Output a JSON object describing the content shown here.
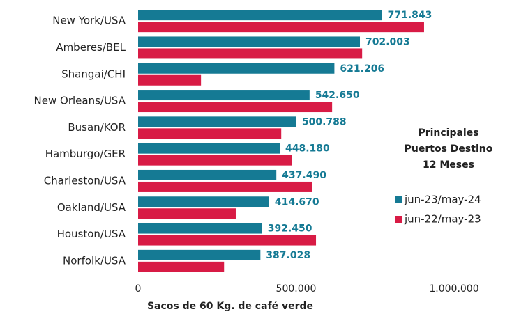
{
  "chart_data": {
    "type": "hbar",
    "categories": [
      "New York/USA",
      "Amberes/BEL",
      "Shangai/CHI",
      "New Orleans/USA",
      "Busan/KOR",
      "Hamburgo/GER",
      "Charleston/USA",
      "Oakland/USA",
      "Houston/USA",
      "Norfolk/USA"
    ],
    "series": [
      {
        "name": "jun-23/may-24",
        "color": "#157a94",
        "values": [
          771843,
          702003,
          621206,
          542650,
          500788,
          448180,
          437490,
          414670,
          392450,
          387028
        ],
        "value_labels": [
          "771.843",
          "702.003",
          "621.206",
          "542.650",
          "500.788",
          "448.180",
          "437.490",
          "414.670",
          "392.450",
          "387.028"
        ]
      },
      {
        "name": "jun-22/may-23",
        "color": "#d81b45",
        "values": [
          905000,
          709000,
          199000,
          614000,
          453000,
          486000,
          550000,
          309000,
          563000,
          272000
        ]
      }
    ],
    "xlim": [
      0,
      1000000
    ],
    "xticks": [
      0,
      {
        "value": 500000,
        "label": "500.000"
      },
      {
        "value": 1000000,
        "label": "1.000.000"
      }
    ],
    "xlabel": "Sacos de 60 Kg. de café verde",
    "legend_title": [
      "Principales",
      "Puertos Destino",
      "12 Meses"
    ],
    "legend": "right"
  }
}
